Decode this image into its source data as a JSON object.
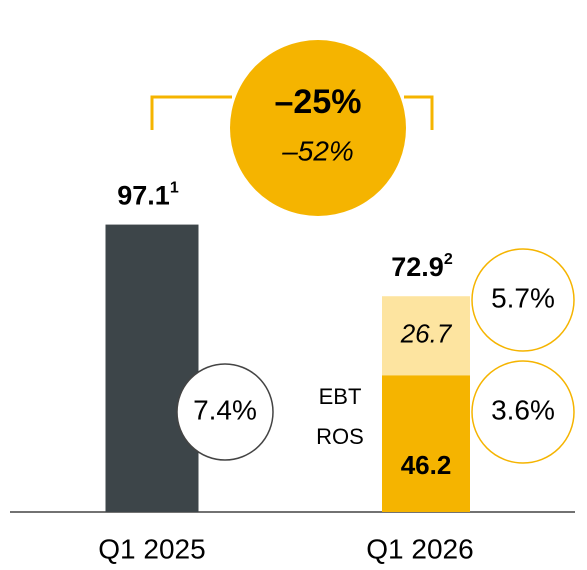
{
  "chart_data": {
    "type": "bar",
    "stacked": true,
    "categories": [
      "Q1 2025",
      "Q1 2026"
    ],
    "series": [
      {
        "color": "#3d4549",
        "values": [
          97.1,
          null
        ]
      },
      {
        "color": "#f5b400",
        "values": [
          null,
          46.2
        ],
        "value_labels": [
          null,
          "46.2"
        ],
        "label_style": "bold"
      },
      {
        "color": "#fde4a0",
        "values": [
          null,
          26.7
        ],
        "value_labels": [
          null,
          "26.7"
        ],
        "label_style": "italic"
      }
    ],
    "totals": [
      {
        "value": 97.1,
        "footnote": "1"
      },
      {
        "value": 72.9,
        "footnote": "2"
      }
    ],
    "ylim": [
      0,
      100
    ],
    "annotations": {
      "change": "–25%",
      "change_secondary": "–52%",
      "legend": [
        "EBT",
        "ROS"
      ],
      "ros": [
        "7.4%",
        "5.7%",
        "3.6%"
      ]
    }
  }
}
